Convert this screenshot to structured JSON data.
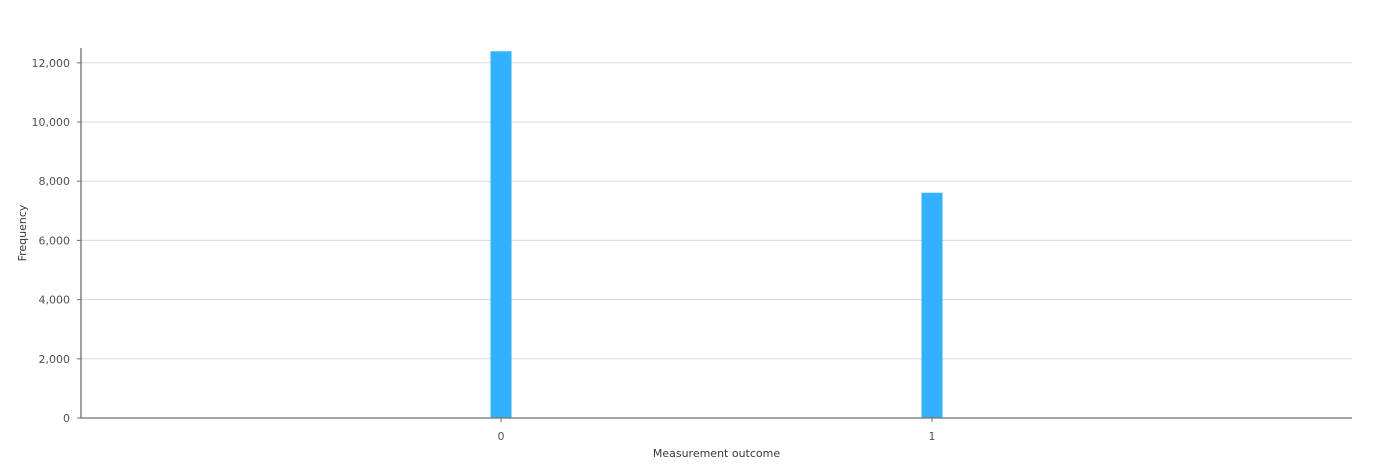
{
  "chart_data": {
    "type": "bar",
    "categories": [
      "0",
      "1"
    ],
    "values": [
      12390,
      7610
    ],
    "xlabel": "Measurement outcome",
    "ylabel": "Frequency",
    "ylim": [
      0,
      12500
    ],
    "yticks": [
      0,
      2000,
      4000,
      6000,
      8000,
      10000,
      12000
    ],
    "ytick_labels": [
      "0",
      "2,000",
      "4,000",
      "6,000",
      "8,000",
      "10,000",
      "12,000"
    ],
    "grid": true,
    "legend": "none",
    "bar_color": "#33b1ff"
  }
}
